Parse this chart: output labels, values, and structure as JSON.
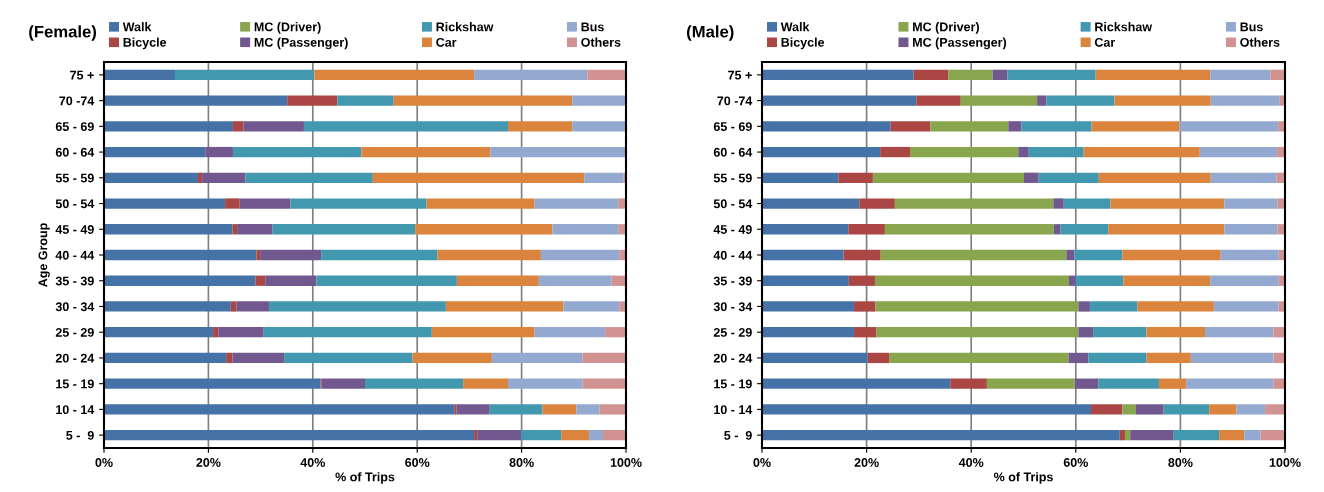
{
  "chart_data": [
    {
      "type": "bar",
      "orientation": "horizontal",
      "stacked": true,
      "title": "(Female)",
      "xlabel": "% of Trips",
      "ylabel": "Age Group",
      "grid": "x",
      "legend": "top",
      "categories": [
        "75 +",
        "70 -74",
        "65 - 69",
        "60 - 64",
        "55 - 59",
        "50 - 54",
        "45 - 49",
        "40 - 44",
        "35 - 39",
        "30 - 34",
        "25 - 29",
        "20 - 24",
        "15 - 19",
        "10 - 14",
        "5 -  9"
      ],
      "xlim": [
        0,
        100
      ],
      "xticks": [
        {
          "value": 0,
          "label": "0%"
        },
        {
          "value": 20,
          "label": "20%"
        },
        {
          "value": 40,
          "label": "40%"
        },
        {
          "value": 60,
          "label": "60%"
        },
        {
          "value": 80,
          "label": "80%"
        },
        {
          "value": 100,
          "label": "100%"
        }
      ],
      "series": [
        {
          "name": "Walk",
          "color": "#4572a7",
          "values": [
            13.6,
            35.1,
            24.7,
            19.4,
            18.0,
            23.2,
            24.6,
            29.2,
            29.0,
            24.3,
            20.9,
            23.4,
            41.5,
            67.1,
            70.9
          ]
        },
        {
          "name": "Bicycle",
          "color": "#aa4643",
          "values": [
            0,
            9.6,
            2.0,
            0,
            0.8,
            2.8,
            0.9,
            0.7,
            1.9,
            1.1,
            1.0,
            1.2,
            0.2,
            0.4,
            0.6
          ]
        },
        {
          "name": "MC (Driver)",
          "color": "#89a54e",
          "values": [
            0,
            0,
            0,
            0,
            0,
            0,
            0,
            0,
            0,
            0,
            0,
            0,
            0,
            0,
            0
          ]
        },
        {
          "name": "MC (Passenger)",
          "color": "#71588f",
          "values": [
            0,
            0,
            11.6,
            5.3,
            8.3,
            9.7,
            6.8,
            11.7,
            9.8,
            6.2,
            8.7,
            9.9,
            8.3,
            6.4,
            8.4
          ]
        },
        {
          "name": "Rickshaw",
          "color": "#4198af",
          "values": [
            26.7,
            10.8,
            39.1,
            24.6,
            24.4,
            26.1,
            27.3,
            22.3,
            26.9,
            33.9,
            32.2,
            24.6,
            18.8,
            10.1,
            7.7
          ]
        },
        {
          "name": "Car",
          "color": "#db843d",
          "values": [
            30.6,
            34.2,
            12.3,
            24.7,
            40.5,
            20.7,
            26.3,
            19.8,
            15.7,
            22.5,
            19.7,
            15.2,
            8.6,
            6.5,
            5.3
          ]
        },
        {
          "name": "Bus",
          "color": "#93a9cf",
          "values": [
            21.7,
            10.3,
            10.3,
            26.0,
            7.5,
            16.0,
            12.6,
            15.0,
            13.9,
            10.7,
            13.5,
            17.4,
            14.3,
            4.4,
            2.7
          ]
        },
        {
          "name": "Others",
          "color": "#d19392",
          "values": [
            7.4,
            0,
            0,
            0,
            0.5,
            1.5,
            1.5,
            1.3,
            2.8,
            1.3,
            4.0,
            8.3,
            8.3,
            5.1,
            4.4
          ]
        }
      ]
    },
    {
      "type": "bar",
      "orientation": "horizontal",
      "stacked": true,
      "title": "(Male)",
      "xlabel": "% of Trips",
      "grid": "x",
      "legend": "top",
      "categories": [
        "75 +",
        "70 -74",
        "65 - 69",
        "60 - 64",
        "55 - 59",
        "50 - 54",
        "45 - 49",
        "40 - 44",
        "35 - 39",
        "30 - 34",
        "25 - 29",
        "20 - 24",
        "15 - 19",
        "10 - 14",
        "5 -  9"
      ],
      "xlim": [
        0,
        100
      ],
      "xticks": [
        {
          "value": 0,
          "label": "0%"
        },
        {
          "value": 20,
          "label": "20%"
        },
        {
          "value": 40,
          "label": "40%"
        },
        {
          "value": 60,
          "label": "60%"
        },
        {
          "value": 80,
          "label": "80%"
        },
        {
          "value": 100,
          "label": "100%"
        }
      ],
      "series": [
        {
          "name": "Walk",
          "color": "#4572a7",
          "values": [
            29.0,
            29.5,
            24.6,
            22.6,
            14.6,
            18.6,
            16.5,
            15.6,
            16.6,
            17.6,
            17.6,
            20.2,
            36.0,
            62.9,
            68.4
          ]
        },
        {
          "name": "Bicycle",
          "color": "#aa4643",
          "values": [
            6.6,
            8.5,
            7.6,
            5.7,
            6.6,
            6.8,
            7.0,
            7.1,
            5.0,
            4.1,
            4.3,
            4.2,
            7.0,
            6.0,
            1.0
          ]
        },
        {
          "name": "MC (Driver)",
          "color": "#89a54e",
          "values": [
            8.5,
            14.6,
            14.9,
            20.7,
            28.9,
            30.3,
            32.3,
            35.5,
            37.1,
            38.8,
            38.6,
            34.2,
            16.8,
            2.6,
            1.0
          ]
        },
        {
          "name": "MC (Passenger)",
          "color": "#71588f",
          "values": [
            2.8,
            1.8,
            2.5,
            2.0,
            2.8,
            2.0,
            1.3,
            1.5,
            1.3,
            2.2,
            2.8,
            3.8,
            4.5,
            5.3,
            8.2
          ]
        },
        {
          "name": "Rickshaw",
          "color": "#4198af",
          "values": [
            16.9,
            13.0,
            13.4,
            10.5,
            11.5,
            8.9,
            9.1,
            9.2,
            9.1,
            9.1,
            10.2,
            11.1,
            11.6,
            8.7,
            8.8
          ]
        },
        {
          "name": "Car",
          "color": "#db843d",
          "values": [
            21.9,
            18.4,
            16.8,
            22.2,
            21.4,
            21.8,
            22.2,
            18.8,
            16.6,
            14.6,
            11.2,
            8.5,
            5.2,
            5.2,
            4.8
          ]
        },
        {
          "name": "Bus",
          "color": "#93a9cf",
          "values": [
            11.5,
            13.2,
            18.9,
            14.8,
            12.6,
            10.2,
            10.2,
            11.1,
            13.1,
            12.4,
            13.1,
            15.8,
            16.7,
            5.5,
            3.1
          ]
        },
        {
          "name": "Others",
          "color": "#d19392",
          "values": [
            2.8,
            1.0,
            1.3,
            1.5,
            1.6,
            1.4,
            1.4,
            1.2,
            1.2,
            1.2,
            2.2,
            2.2,
            2.2,
            3.8,
            4.7
          ]
        }
      ]
    }
  ]
}
